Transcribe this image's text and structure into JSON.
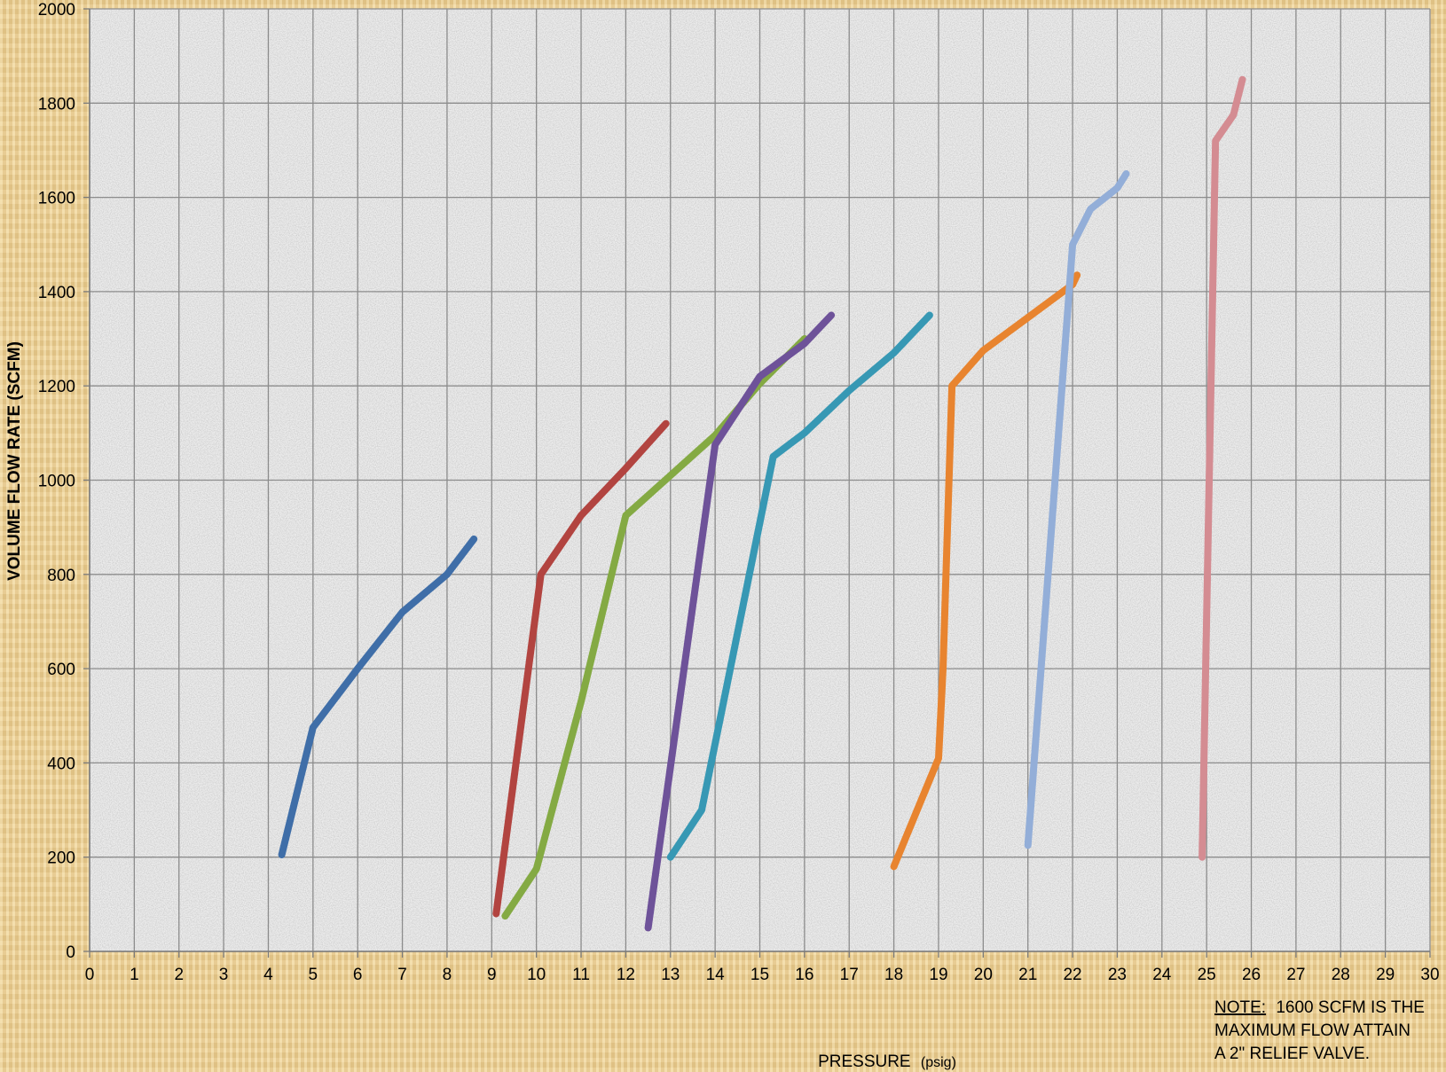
{
  "chart_data": {
    "type": "line",
    "xlabel": "PRESSURE",
    "xlabel_unit": "(psig)",
    "ylabel": "VOLUME FLOW RATE (SCFM)",
    "xlim": [
      0,
      30
    ],
    "ylim": [
      0,
      2000
    ],
    "x_ticks": [
      0,
      1,
      2,
      3,
      4,
      5,
      6,
      7,
      8,
      9,
      10,
      11,
      12,
      13,
      14,
      15,
      16,
      17,
      18,
      19,
      20,
      21,
      22,
      23,
      24,
      25,
      26,
      27,
      28,
      29,
      30
    ],
    "y_ticks": [
      0,
      200,
      400,
      600,
      800,
      1000,
      1200,
      1400,
      1600,
      1800,
      2000
    ],
    "grid": true,
    "legend": "none",
    "note_label": "NOTE:",
    "note_lines": [
      "1600 SCFM IS THE",
      "MAXIMUM FLOW ATTAIN",
      "A 2\" RELIEF VALVE."
    ],
    "series": [
      {
        "color": "#3f6ea8",
        "points": [
          [
            4.3,
            205
          ],
          [
            5,
            475
          ],
          [
            6,
            600
          ],
          [
            7,
            720
          ],
          [
            8,
            800
          ],
          [
            8.6,
            875
          ]
        ]
      },
      {
        "color": "#b24440",
        "points": [
          [
            9.1,
            80
          ],
          [
            10.1,
            800
          ],
          [
            11,
            925
          ],
          [
            12,
            1025
          ],
          [
            12.9,
            1120
          ]
        ]
      },
      {
        "color": "#84aa43",
        "points": [
          [
            9.3,
            75
          ],
          [
            10,
            175
          ],
          [
            11,
            530
          ],
          [
            12,
            925
          ],
          [
            13,
            1010
          ],
          [
            14,
            1095
          ],
          [
            15,
            1205
          ],
          [
            16,
            1300
          ]
        ]
      },
      {
        "color": "#6e5299",
        "points": [
          [
            12.5,
            50
          ],
          [
            14,
            1075
          ],
          [
            15,
            1220
          ],
          [
            16,
            1290
          ],
          [
            16.6,
            1350
          ]
        ]
      },
      {
        "color": "#3798b4",
        "points": [
          [
            13,
            200
          ],
          [
            13.7,
            300
          ],
          [
            15.3,
            1050
          ],
          [
            16,
            1100
          ],
          [
            17,
            1190
          ],
          [
            18,
            1270
          ],
          [
            18.8,
            1350
          ]
        ]
      },
      {
        "color": "#e8842f",
        "points": [
          [
            18,
            180
          ],
          [
            19,
            410
          ],
          [
            19.1,
            600
          ],
          [
            19.3,
            1200
          ],
          [
            20,
            1275
          ],
          [
            21,
            1345
          ],
          [
            22,
            1415
          ],
          [
            22.1,
            1435
          ]
        ]
      },
      {
        "color": "#93aed8",
        "points": [
          [
            21,
            225
          ],
          [
            22,
            1500
          ],
          [
            22.4,
            1575
          ],
          [
            23,
            1620
          ],
          [
            23.2,
            1650
          ]
        ]
      },
      {
        "color": "#d48c92",
        "points": [
          [
            24.9,
            200
          ],
          [
            25.2,
            1720
          ],
          [
            25.6,
            1775
          ],
          [
            25.8,
            1850
          ]
        ]
      }
    ]
  }
}
